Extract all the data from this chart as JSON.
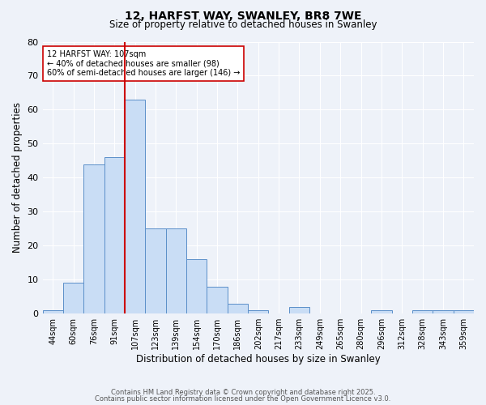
{
  "title": "12, HARFST WAY, SWANLEY, BR8 7WE",
  "subtitle": "Size of property relative to detached houses in Swanley",
  "xlabel": "Distribution of detached houses by size in Swanley",
  "ylabel": "Number of detached properties",
  "bin_labels": [
    "44sqm",
    "60sqm",
    "76sqm",
    "91sqm",
    "107sqm",
    "123sqm",
    "139sqm",
    "154sqm",
    "170sqm",
    "186sqm",
    "202sqm",
    "217sqm",
    "233sqm",
    "249sqm",
    "265sqm",
    "280sqm",
    "296sqm",
    "312sqm",
    "328sqm",
    "343sqm",
    "359sqm"
  ],
  "bar_values": [
    1,
    9,
    44,
    46,
    63,
    25,
    25,
    16,
    8,
    3,
    1,
    0,
    2,
    0,
    0,
    0,
    1,
    0,
    1,
    1,
    1
  ],
  "red_line_index": 4,
  "ylim": [
    0,
    80
  ],
  "yticks": [
    0,
    10,
    20,
    30,
    40,
    50,
    60,
    70,
    80
  ],
  "bar_color": "#c9ddf5",
  "bar_edge_color": "#5b8fc9",
  "red_line_color": "#cc0000",
  "annotation_title": "12 HARFST WAY: 107sqm",
  "annotation_line1": "← 40% of detached houses are smaller (98)",
  "annotation_line2": "60% of semi-detached houses are larger (146) →",
  "annotation_box_color": "#ffffff",
  "annotation_box_edge": "#cc0000",
  "background_color": "#eef2f9",
  "grid_color": "#ffffff",
  "footer1": "Contains HM Land Registry data © Crown copyright and database right 2025.",
  "footer2": "Contains public sector information licensed under the Open Government Licence v3.0."
}
